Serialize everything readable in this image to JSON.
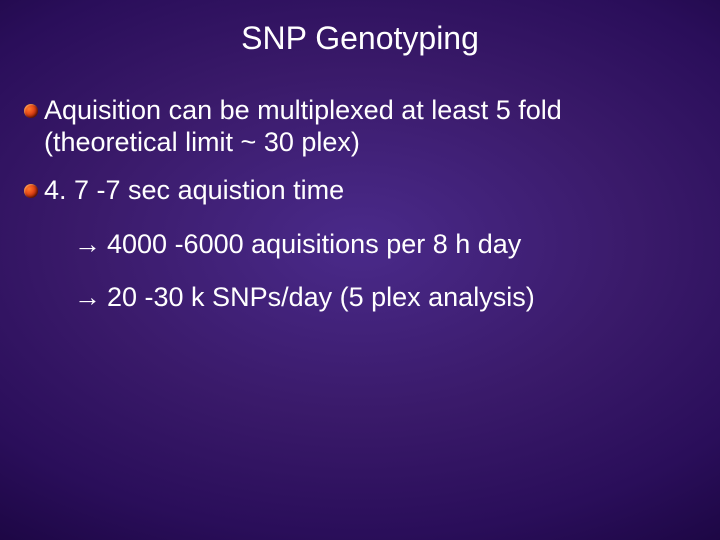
{
  "slide": {
    "title": "SNP Genotyping",
    "background_gradient": [
      "#4a2a8a",
      "#3a1a6a",
      "#2a0e5a",
      "#1a0540",
      "#0d0225"
    ],
    "title_color": "#ffffff",
    "body_color": "#ffffff",
    "title_fontsize": 32,
    "body_fontsize": 27,
    "bullet_l1_color_gradient": [
      "#ff7a2a",
      "#e94e1b",
      "#b02a0a",
      "#6a1800"
    ],
    "bullet_l2_glyph": "→",
    "items": [
      {
        "text": "Aquisition can be multiplexed at least 5 fold (theoretical limit ~ 30 plex)"
      },
      {
        "text": "4. 7 -7 sec aquistion time",
        "sub": [
          "4000 -6000 aquisitions per 8 h day",
          " 20 -30 k SNPs/day (5 plex analysis)"
        ]
      }
    ]
  }
}
